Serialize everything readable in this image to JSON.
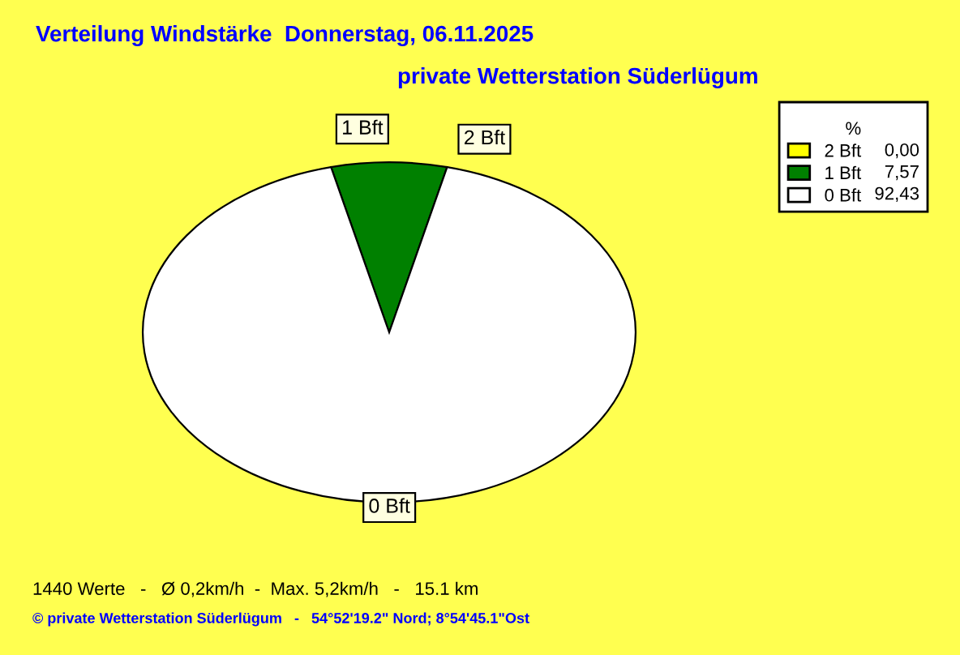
{
  "chart_data": {
    "type": "pie",
    "title": "Verteilung Windstärke  Donnerstag, 06.11.2025",
    "subtitle": "private Wetterstation Süderlügum",
    "categories": [
      "2 Bft",
      "1 Bft",
      "0 Bft"
    ],
    "values": [
      0.0,
      7.57,
      92.43
    ],
    "colors": [
      "#ffff00",
      "#008000",
      "#ffffff"
    ],
    "value_labels": [
      "0,00",
      "7,57",
      "92,43"
    ],
    "legend_title": "%",
    "legend": "top right",
    "annotations": [
      "1440 Werte   -   Ø 0,2km/h  -  Max. 5,2km/h   -   15.1 km",
      "© private Wetterstation Süderlügum   -   54°52'19.2\" Nord; 8°54'45.1\"Ost"
    ]
  }
}
